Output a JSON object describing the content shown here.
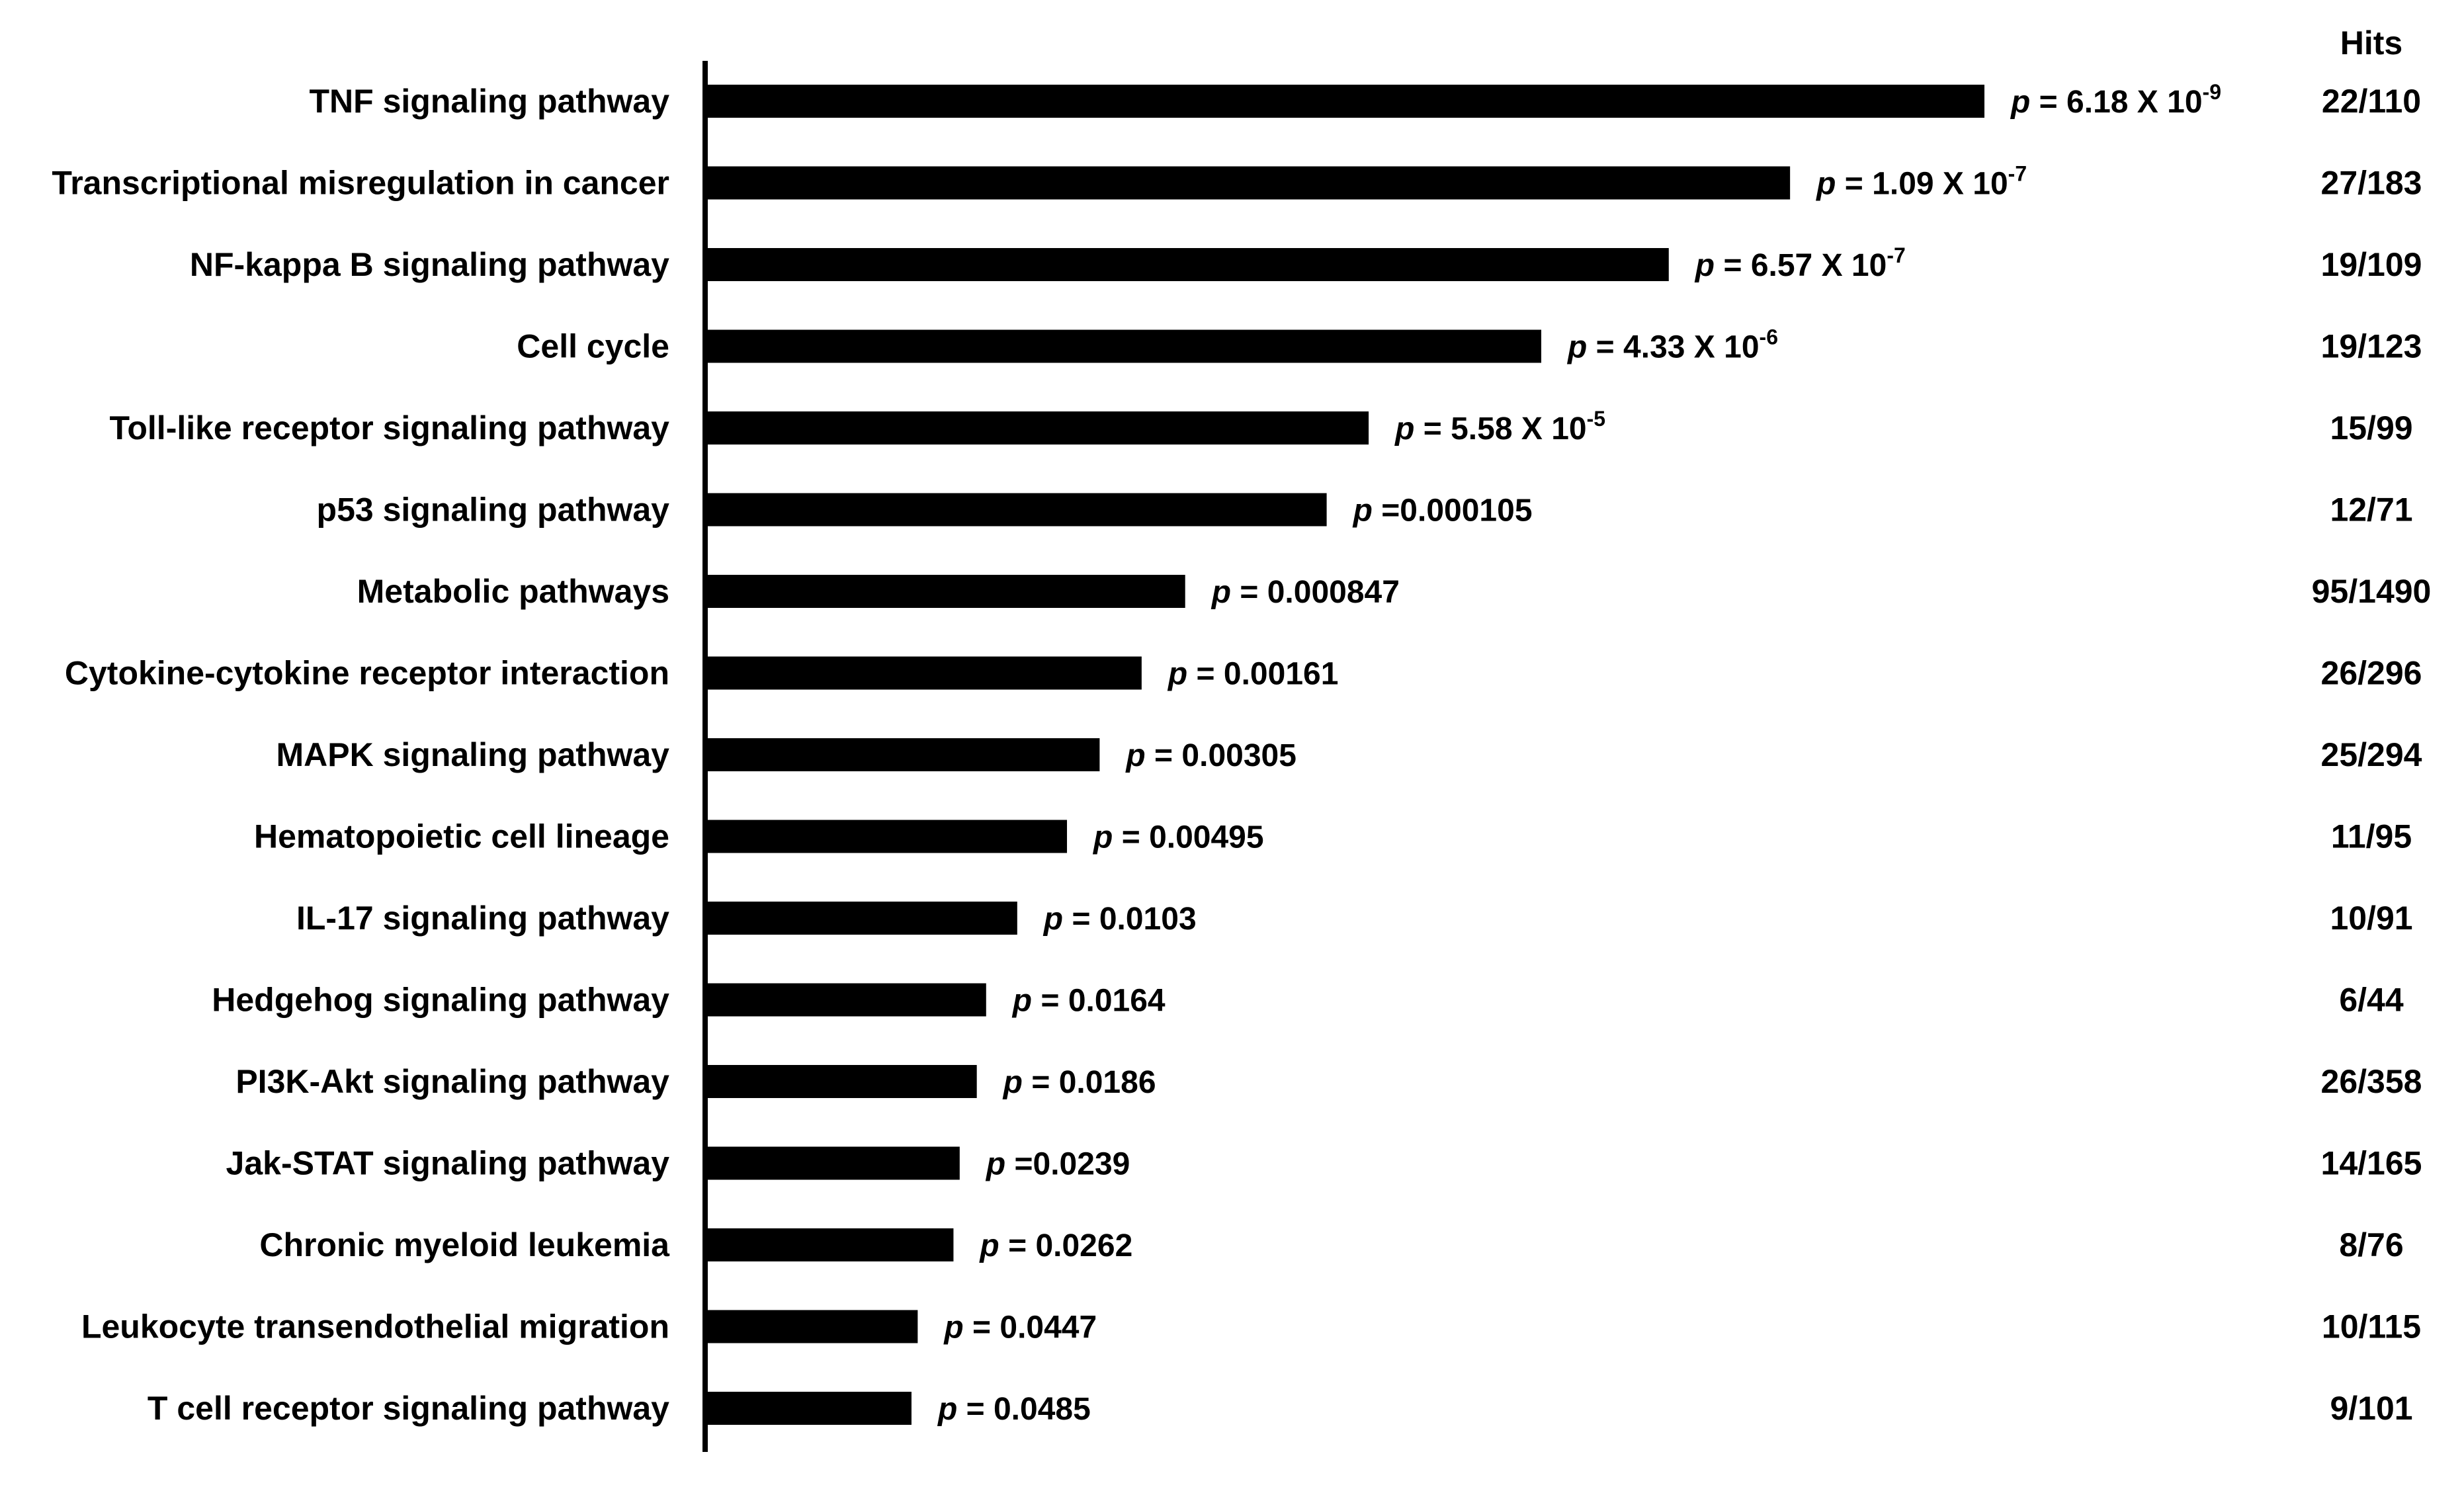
{
  "chart_data": {
    "type": "bar",
    "orientation": "horizontal",
    "title": "",
    "xlabel": "",
    "ylabel": "",
    "hits_header": "Hits",
    "bar_color": "#000000",
    "categories": [
      "TNF signaling pathway",
      "Transcriptional misregulation in cancer",
      "NF-kappa B signaling pathway",
      "Cell cycle",
      "Toll-like receptor signaling pathway",
      "p53 signaling pathway",
      "Metabolic pathways",
      "Cytokine-cytokine receptor interaction",
      "MAPK signaling pathway",
      "Hematopoietic cell lineage",
      "IL-17 signaling pathway",
      "Hedgehog signaling pathway",
      "PI3K-Akt signaling pathway",
      "Jak-STAT signaling pathway",
      "Chronic myeloid leukemia",
      "Leukocyte transendothelial migration",
      "T cell receptor signaling pathway"
    ],
    "values": [
      8.21,
      6.96,
      6.18,
      5.36,
      4.25,
      3.98,
      3.07,
      2.79,
      2.52,
      2.31,
      1.99,
      1.79,
      1.73,
      1.62,
      1.58,
      1.35,
      1.31
    ],
    "p_labels": [
      {
        "prefix": "p",
        "text": " = 6.18 X 10",
        "exp": "-9"
      },
      {
        "prefix": "p",
        "text": " = 1.09 X 10",
        "exp": "-7"
      },
      {
        "prefix": "p",
        "text": " = 6.57 X 10",
        "exp": "-7"
      },
      {
        "prefix": "p",
        "text": " = 4.33 X 10",
        "exp": "-6"
      },
      {
        "prefix": "p",
        "text": " = 5.58 X 10",
        "exp": "-5"
      },
      {
        "prefix": "p",
        "text": " =0.000105",
        "exp": ""
      },
      {
        "prefix": "p",
        "text": " =  0.000847",
        "exp": ""
      },
      {
        "prefix": "p",
        "text": " = 0.00161",
        "exp": ""
      },
      {
        "prefix": "p",
        "text": " =  0.00305",
        "exp": ""
      },
      {
        "prefix": "p",
        "text": " = 0.00495",
        "exp": ""
      },
      {
        "prefix": "p",
        "text": " = 0.0103",
        "exp": ""
      },
      {
        "prefix": "p",
        "text": " = 0.0164",
        "exp": ""
      },
      {
        "prefix": "p",
        "text": " = 0.0186",
        "exp": ""
      },
      {
        "prefix": "p",
        "text": " =0.0239",
        "exp": ""
      },
      {
        "prefix": "p",
        "text": " =  0.0262",
        "exp": ""
      },
      {
        "prefix": "p",
        "text": " = 0.0447",
        "exp": ""
      },
      {
        "prefix": "p",
        "text": " = 0.0485",
        "exp": ""
      }
    ],
    "hits": [
      "22/110",
      "27/183",
      "19/109",
      "19/123",
      "15/99",
      "12/71",
      "95/1490",
      "26/296",
      "25/294",
      "11/95",
      "10/91",
      "6/44",
      "26/358",
      "14/165",
      "8/76",
      "10/115",
      "9/101"
    ],
    "xlim": [
      0,
      8.21
    ],
    "grid": false,
    "legend": "none"
  }
}
